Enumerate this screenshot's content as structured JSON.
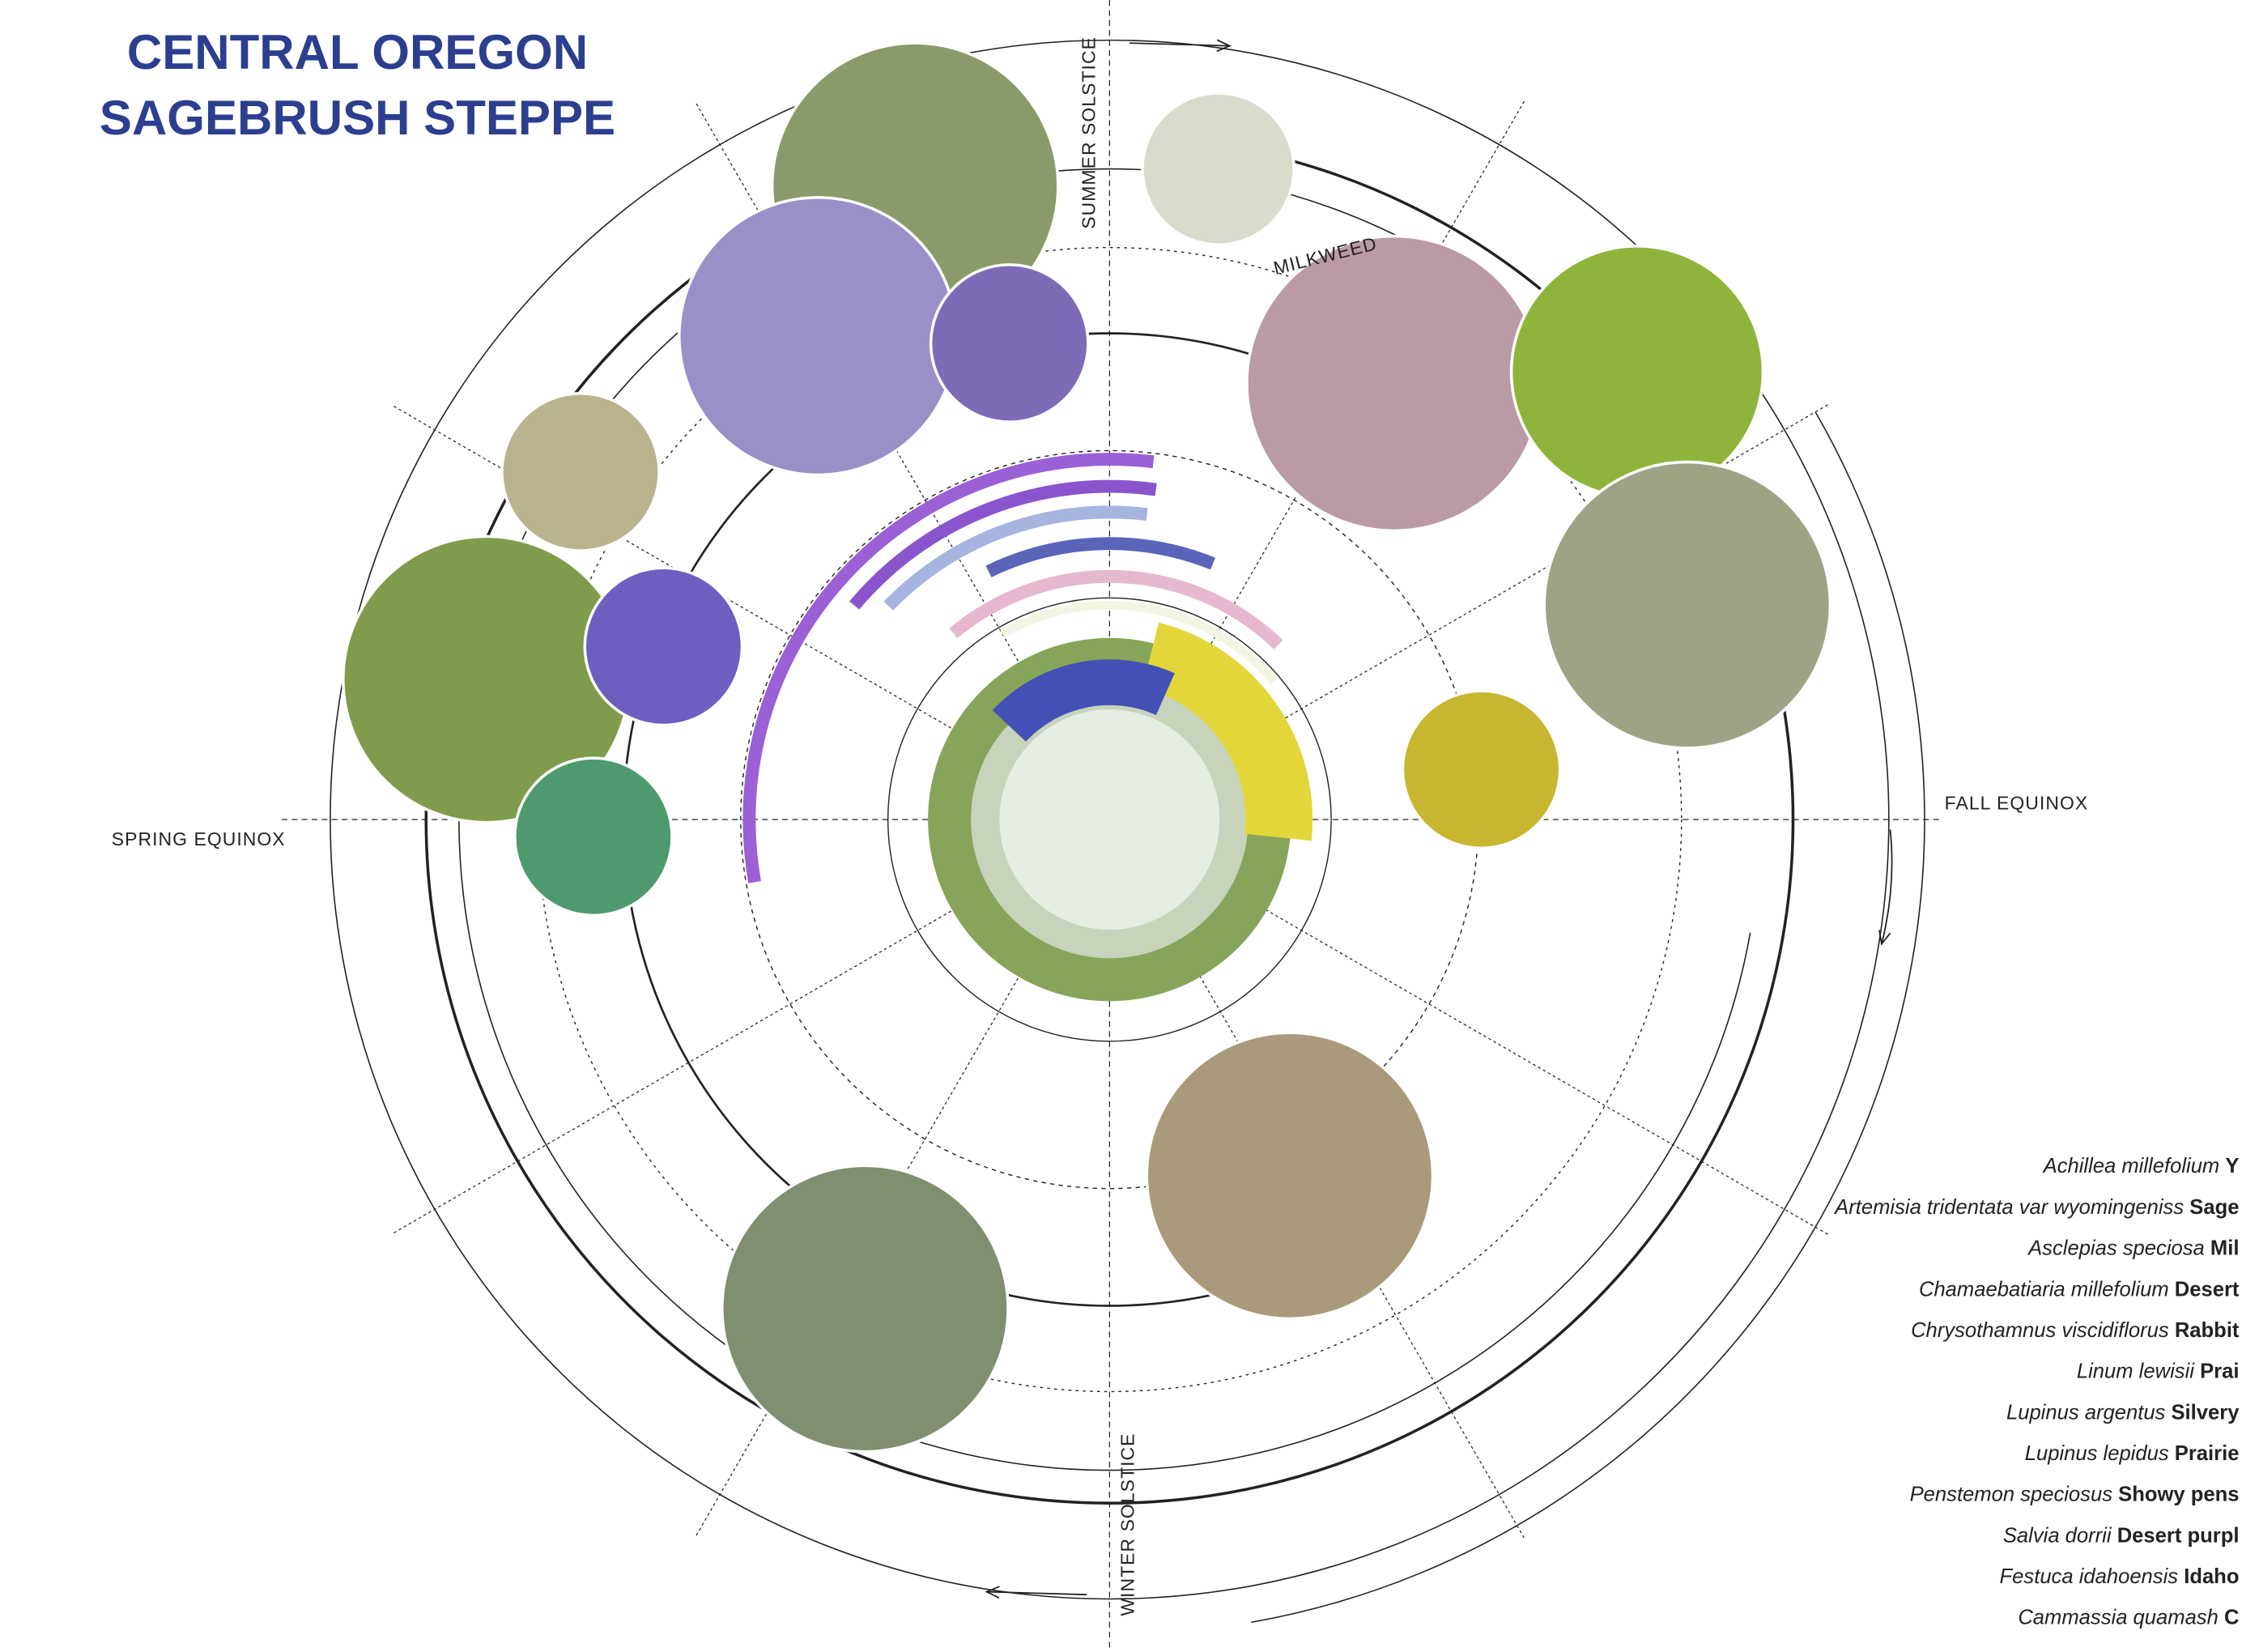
{
  "title": {
    "line1": "CENTRAL OREGON",
    "line2": "SAGEBRUSH STEPPE"
  },
  "labels": {
    "summer": "SUMMER SOLSTICE",
    "fall": "FALL EQUINOX",
    "winter": "WINTER SOLSTICE",
    "spring": "SPRING EQUINOX",
    "milkweed": "MILKWEED"
  },
  "species": [
    {
      "latin": "Achillea millefolium",
      "common": "Y"
    },
    {
      "latin": "Artemisia tridentata var wyomingeniss",
      "common": "Sage"
    },
    {
      "latin": "Asclepias speciosa",
      "common": "Mil"
    },
    {
      "latin": "Chamaebatiaria millefolium",
      "common": "Desert"
    },
    {
      "latin": "Chrysothamnus viscidiflorus",
      "common": "Rabbit"
    },
    {
      "latin": "Linum lewisii",
      "common": "Prai"
    },
    {
      "latin": "Lupinus argentus",
      "common": "Silvery"
    },
    {
      "latin": "Lupinus lepidus",
      "common": "Prairie"
    },
    {
      "latin": "Penstemon speciosus",
      "common": "Showy pens"
    },
    {
      "latin": "Salvia dorrii",
      "common": "Desert purpl"
    },
    {
      "latin": "Festuca idahoensis",
      "common": "Idaho"
    },
    {
      "latin": "Cammassia quamash",
      "common": "C"
    }
  ]
}
